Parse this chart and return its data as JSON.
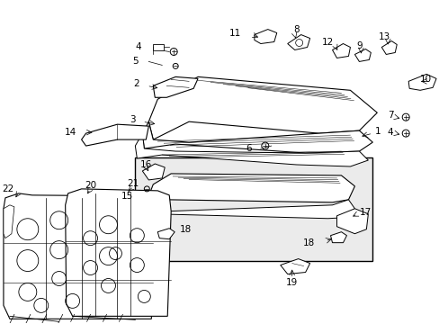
{
  "figsize": [
    4.89,
    3.6
  ],
  "dpi": 100,
  "bg": "#ffffff",
  "box_bg": "#ebebeb",
  "lw_main": 0.8,
  "lw_thin": 0.5,
  "lw_label": 0.5,
  "font_size": 7.5
}
